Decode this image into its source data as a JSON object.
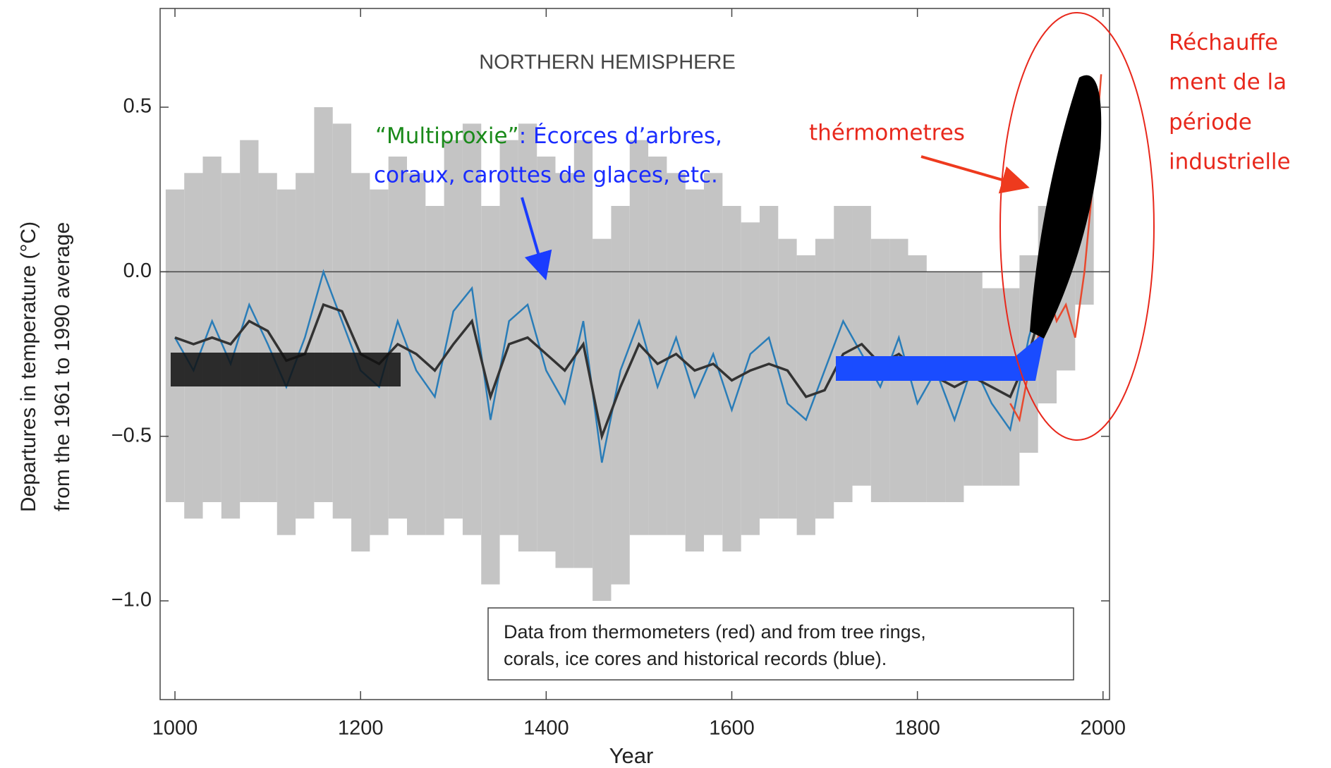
{
  "chart_data": {
    "type": "line",
    "title": "NORTHERN HEMISPHERE",
    "x_label": "Year",
    "y_label": [
      "Departures in temperature (°C)",
      "from the 1961 to 1990 average"
    ],
    "note": [
      "Data from thermometers (red) and from tree rings,",
      "corals, ice cores and historical records (blue)."
    ],
    "xlim": [
      984,
      2007
    ],
    "xticks": [
      1000,
      1200,
      1400,
      1600,
      1800,
      2000
    ],
    "ylim": [
      -1.3,
      0.8
    ],
    "yticks": [
      0.5,
      {
        "value": 0,
        "label": "0.0"
      },
      {
        "value": -0.5,
        "label": "−0.5"
      },
      {
        "value": -1,
        "label": "−1.0"
      }
    ],
    "reference_line": 0,
    "x": [
      1000,
      1020,
      1040,
      1060,
      1080,
      1100,
      1120,
      1140,
      1160,
      1180,
      1200,
      1220,
      1240,
      1260,
      1280,
      1300,
      1320,
      1340,
      1360,
      1380,
      1400,
      1420,
      1440,
      1460,
      1480,
      1500,
      1520,
      1540,
      1560,
      1580,
      1600,
      1620,
      1640,
      1660,
      1680,
      1700,
      1720,
      1740,
      1760,
      1780,
      1800,
      1820,
      1840,
      1860,
      1880,
      1900,
      1920,
      1940,
      1960,
      1980
    ],
    "band": {
      "color": "#c4c4c4",
      "upper": [
        0.25,
        0.3,
        0.35,
        0.3,
        0.4,
        0.3,
        0.25,
        0.3,
        0.5,
        0.45,
        0.3,
        0.25,
        0.35,
        0.3,
        0.2,
        0.4,
        0.45,
        0.2,
        0.4,
        0.45,
        0.35,
        0.3,
        0.4,
        0.1,
        0.2,
        0.4,
        0.35,
        0.3,
        0.25,
        0.3,
        0.2,
        0.15,
        0.2,
        0.1,
        0.05,
        0.1,
        0.2,
        0.2,
        0.1,
        0.1,
        0.05,
        0.0,
        0.0,
        0.0,
        -0.05,
        -0.05,
        0.05,
        0.2,
        0.3,
        0.5
      ],
      "lower": [
        -0.7,
        -0.75,
        -0.7,
        -0.75,
        -0.7,
        -0.7,
        -0.8,
        -0.75,
        -0.7,
        -0.75,
        -0.85,
        -0.8,
        -0.75,
        -0.8,
        -0.8,
        -0.75,
        -0.8,
        -0.95,
        -0.8,
        -0.85,
        -0.85,
        -0.9,
        -0.9,
        -1.0,
        -0.95,
        -0.8,
        -0.8,
        -0.8,
        -0.85,
        -0.8,
        -0.85,
        -0.8,
        -0.75,
        -0.75,
        -0.8,
        -0.75,
        -0.7,
        -0.65,
        -0.7,
        -0.7,
        -0.7,
        -0.7,
        -0.7,
        -0.65,
        -0.65,
        -0.65,
        -0.55,
        -0.4,
        -0.3,
        -0.1
      ]
    },
    "series": [
      {
        "color": "#2a7db8",
        "values": [
          -0.2,
          -0.3,
          -0.15,
          -0.28,
          -0.1,
          -0.22,
          -0.35,
          -0.2,
          0.0,
          -0.15,
          -0.3,
          -0.35,
          -0.15,
          -0.3,
          -0.38,
          -0.12,
          -0.05,
          -0.45,
          -0.15,
          -0.1,
          -0.3,
          -0.4,
          -0.15,
          -0.58,
          -0.3,
          -0.15,
          -0.35,
          -0.2,
          -0.38,
          -0.25,
          -0.42,
          -0.25,
          -0.2,
          -0.4,
          -0.45,
          -0.3,
          -0.15,
          -0.25,
          -0.35,
          -0.2,
          -0.4,
          -0.3,
          -0.45,
          -0.28,
          -0.4,
          -0.48,
          -0.2,
          0.0,
          0.05,
          0.3
        ]
      },
      {
        "color": "#333333",
        "values": [
          -0.2,
          -0.22,
          -0.2,
          -0.22,
          -0.15,
          -0.18,
          -0.27,
          -0.25,
          -0.1,
          -0.12,
          -0.25,
          -0.28,
          -0.22,
          -0.25,
          -0.3,
          -0.22,
          -0.15,
          -0.38,
          -0.22,
          -0.2,
          -0.25,
          -0.3,
          -0.22,
          -0.5,
          -0.35,
          -0.22,
          -0.28,
          -0.25,
          -0.3,
          -0.28,
          -0.33,
          -0.3,
          -0.28,
          -0.3,
          -0.38,
          -0.36,
          -0.25,
          -0.22,
          -0.28,
          -0.25,
          -0.3,
          -0.32,
          -0.35,
          -0.32,
          -0.35,
          -0.38,
          -0.25,
          -0.05,
          0.1,
          0.4
        ]
      },
      {
        "color": "#e8492e",
        "x": [
          1900,
          1910,
          1920,
          1930,
          1940,
          1950,
          1960,
          1970,
          1980,
          1990,
          1998
        ],
        "values": [
          -0.4,
          -0.45,
          -0.3,
          -0.2,
          -0.05,
          -0.15,
          -0.1,
          -0.2,
          0.0,
          0.3,
          0.6
        ]
      }
    ],
    "annotations": {
      "proxy_lead": "“Multiproxie”",
      "proxy_rest": ": Écorces d’arbres,",
      "proxy_line2": "coraux, carottes de glaces, etc.",
      "thermometers": "thérmometres",
      "warming": [
        "Réchauffe",
        "ment de la",
        "période",
        "industrielle"
      ]
    }
  }
}
